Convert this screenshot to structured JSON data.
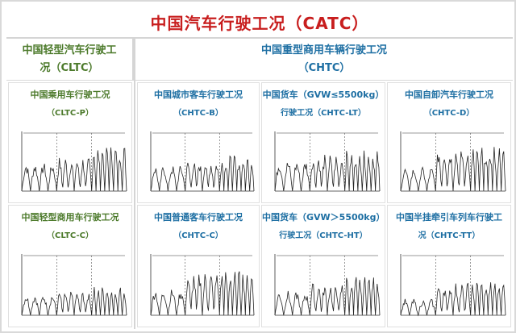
{
  "header": {
    "title": "中国汽车行驶工况（CATC）"
  },
  "left": {
    "title_line1": "中国轻型汽车行驶工",
    "title_line2": "况（CLTC）",
    "cells": [
      {
        "t1": "中国乘用车行驶工况",
        "t2": "（CLTC-P）"
      },
      {
        "t1": "中国轻型商用车行驶工况",
        "t2": "（CLTC-C）"
      }
    ]
  },
  "right": {
    "title_line1": "中国重型商用车辆行驶工况",
    "title_line2": "（CHTC）",
    "cells": [
      {
        "t1": "中国城市客车行驶工况",
        "t2": "（CHTC-B）"
      },
      {
        "t1": "中国货车（GVW≤5500kg）",
        "t2": "行驶工况（CHTC-LT）"
      },
      {
        "t1": "中国自卸汽车行驶工况",
        "t2": "（CHTC-D）"
      },
      {
        "t1": "中国普通客车行驶工况",
        "t2": "（CHTC-C）"
      },
      {
        "t1": "中国货车（GVW＞5500kg）",
        "t2": "行驶工况（CHTC-HT）"
      },
      {
        "t1": "中国半挂牵引车列车行驶工",
        "t2": "况（CHTC-TT）"
      }
    ]
  }
}
